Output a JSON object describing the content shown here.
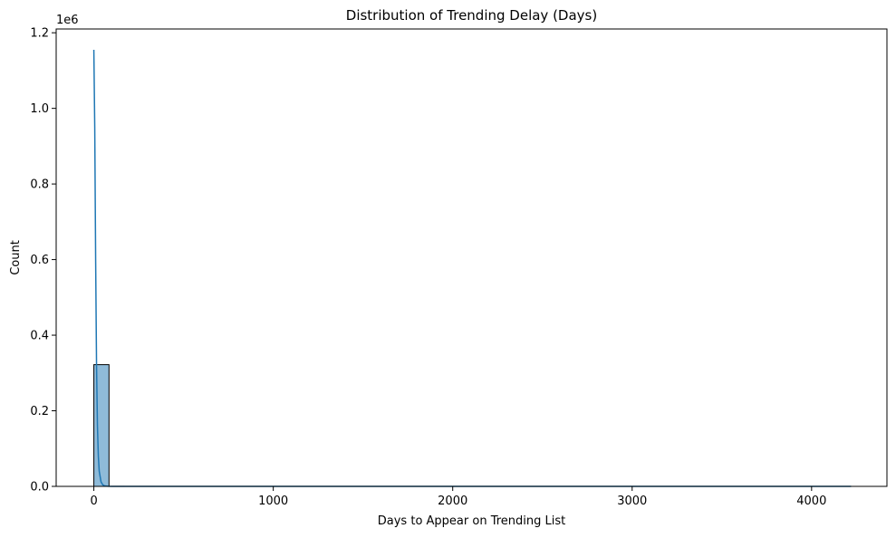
{
  "chart_data": {
    "type": "bar",
    "title": "Distribution of Trending Delay (Days)",
    "xlabel": "Days to Appear on Trending List",
    "ylabel": "Count",
    "y_offset_label": "1e6",
    "xlim": [
      -210,
      4420
    ],
    "ylim": [
      0,
      1210000
    ],
    "x_ticks": [
      0,
      1000,
      2000,
      3000,
      4000
    ],
    "x_tick_labels": [
      "0",
      "1000",
      "2000",
      "3000",
      "4000"
    ],
    "y_ticks": [
      0,
      200000,
      400000,
      600000,
      800000,
      1000000,
      1200000
    ],
    "y_tick_labels": [
      "0.0",
      "0.2",
      "0.4",
      "0.6",
      "0.8",
      "1.0",
      "1.2"
    ],
    "bins": {
      "start": 0,
      "width": 84.4,
      "counts": [
        322000,
        80,
        25,
        12,
        8,
        6,
        5,
        4,
        3,
        3,
        3,
        2,
        2,
        2,
        2,
        1,
        1,
        1,
        1,
        1,
        1,
        1,
        1,
        1,
        1,
        1,
        1,
        1,
        1,
        1,
        1,
        1,
        1,
        1,
        1,
        1,
        1,
        1,
        1,
        1,
        1,
        1,
        1,
        1,
        1,
        1,
        1,
        1,
        1,
        1
      ]
    },
    "kde": {
      "x": [
        0,
        5,
        10,
        15,
        20,
        25,
        30,
        40,
        50,
        60,
        80,
        100,
        150,
        200,
        400,
        1000,
        2000,
        3000,
        4220
      ],
      "y": [
        1155000,
        950000,
        600000,
        320000,
        160000,
        80000,
        40000,
        12000,
        4000,
        1500,
        300,
        80,
        10,
        2,
        0,
        0,
        0,
        0,
        0
      ]
    },
    "bar_color": "#1f77b4",
    "bar_opacity": 0.5,
    "line_color": "#1f77b4",
    "legend": "none",
    "grid": false
  }
}
